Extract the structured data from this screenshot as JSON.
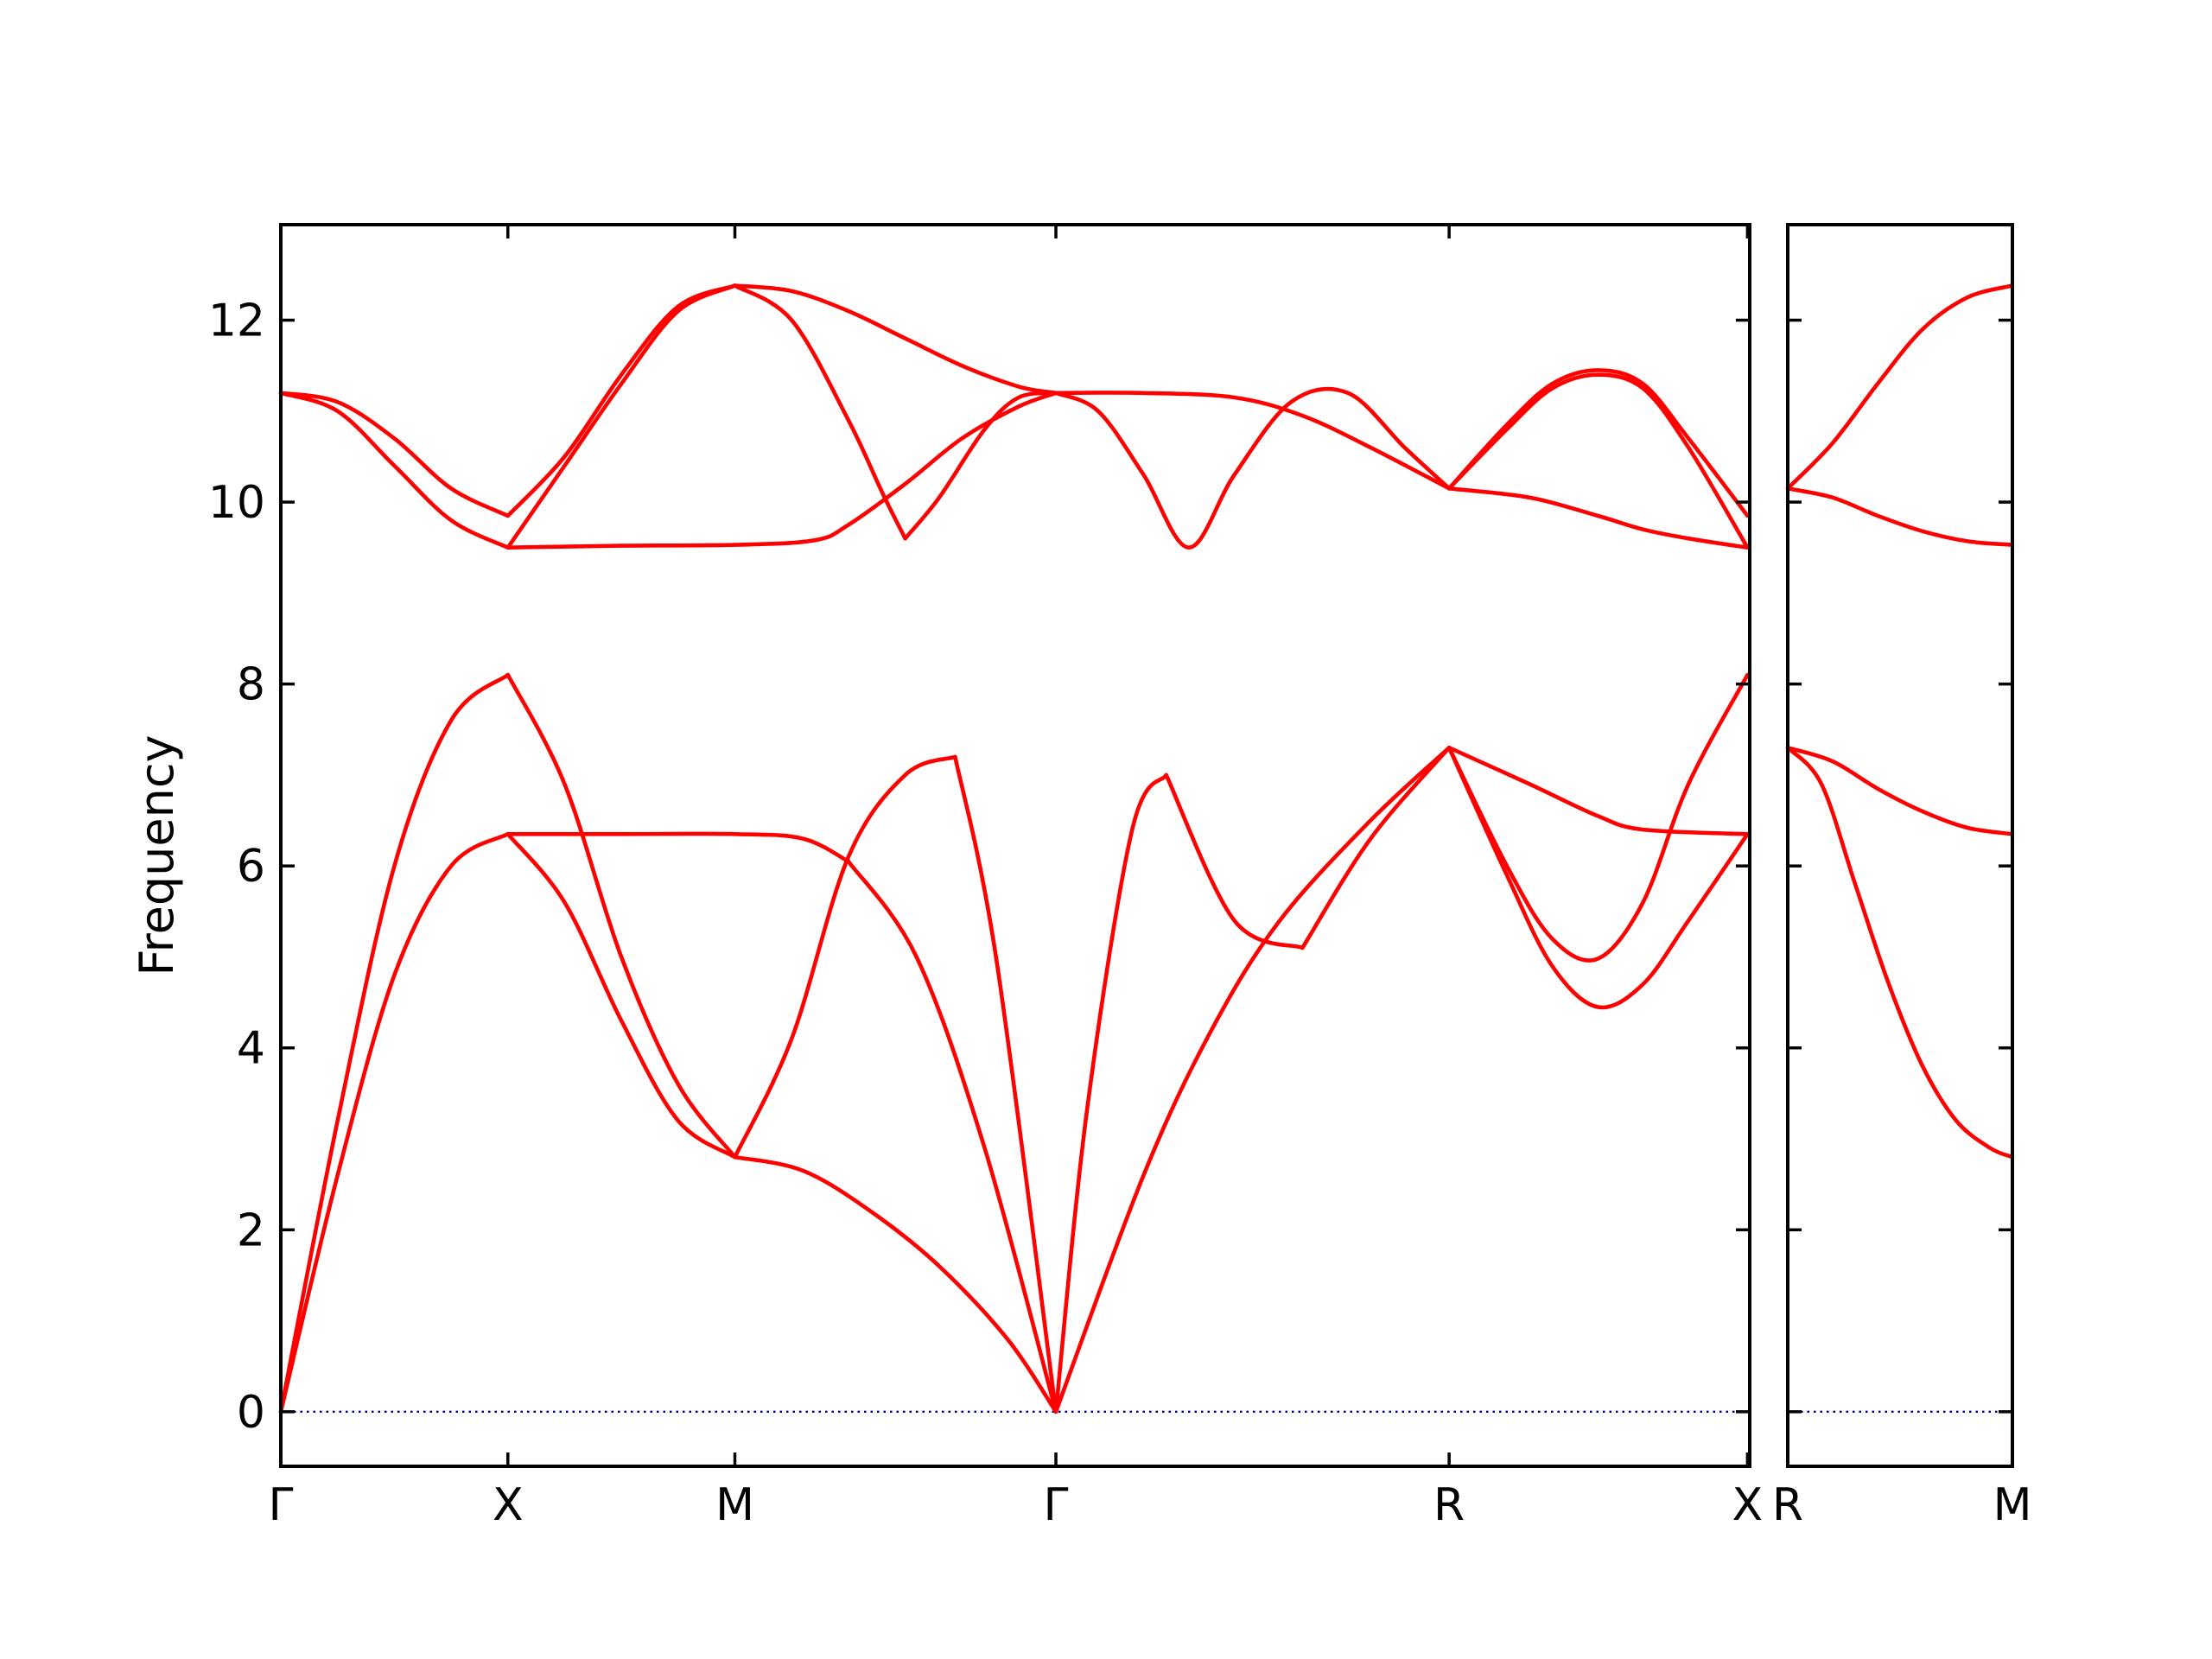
{
  "chart_data": {
    "type": "line",
    "ylabel": "Frequency",
    "ylim": [
      -0.6,
      13.05
    ],
    "yticks": [
      0,
      2,
      4,
      6,
      8,
      10,
      12
    ],
    "colors": {
      "bands": "#ff0000",
      "zero_line": "#00008b"
    },
    "panels": [
      {
        "id": "main",
        "xlim": [
          0,
          6.47
        ],
        "xticks": [
          {
            "pos": 0,
            "label": "Γ"
          },
          {
            "pos": 1,
            "label": "X"
          },
          {
            "pos": 2,
            "label": "M"
          },
          {
            "pos": 3.414,
            "label": "Γ"
          },
          {
            "pos": 5.146,
            "label": "R"
          },
          {
            "pos": 6.46,
            "label": "X"
          }
        ],
        "bands": [
          {
            "x": [
              0,
              0.25,
              0.5,
              0.75,
              1.0
            ],
            "y": [
              0,
              3.2,
              6.0,
              7.6,
              8.1
            ]
          },
          {
            "x": [
              1.0,
              1.25,
              1.5,
              1.75,
              2.0
            ],
            "y": [
              8.1,
              6.9,
              5.0,
              3.6,
              2.8
            ]
          },
          {
            "x": [
              2.0,
              2.25,
              2.5,
              2.75,
              2.97
            ],
            "y": [
              2.8,
              4.1,
              6.1,
              7.0,
              7.2
            ]
          },
          {
            "x": [
              2.97,
              3.15,
              3.414
            ],
            "y": [
              7.2,
              5.0,
              0
            ]
          },
          {
            "x": [
              3.414,
              3.55,
              3.75,
              3.9
            ],
            "y": [
              0,
              3.3,
              6.4,
              7.0
            ]
          },
          {
            "x": [
              3.9,
              4.2,
              4.5
            ],
            "y": [
              7.0,
              5.4,
              5.1
            ]
          },
          {
            "x": [
              4.5,
              4.8,
              5.146
            ],
            "y": [
              5.1,
              6.3,
              7.3
            ]
          },
          {
            "x": [
              5.146,
              5.5,
              5.8,
              6.0,
              6.46
            ],
            "y": [
              7.3,
              6.9,
              6.55,
              6.4,
              6.35
            ]
          },
          {
            "x": [
              0,
              0.25,
              0.5,
              0.75,
              1.0
            ],
            "y": [
              0,
              2.6,
              4.8,
              6.0,
              6.35
            ]
          },
          {
            "x": [
              1.0,
              1.25,
              1.5,
              1.75,
              2.0
            ],
            "y": [
              6.35,
              5.6,
              4.3,
              3.2,
              2.8
            ]
          },
          {
            "x": [
              2.0,
              2.3,
              2.6,
              2.9,
              3.2,
              3.414
            ],
            "y": [
              2.8,
              2.65,
              2.2,
              1.6,
              0.8,
              0
            ]
          },
          {
            "x": [
              1.0,
              1.5,
              2.0,
              2.3,
              2.5
            ],
            "y": [
              6.35,
              6.35,
              6.35,
              6.3,
              6.05
            ]
          },
          {
            "x": [
              2.5,
              2.8,
              3.1,
              3.414
            ],
            "y": [
              6.05,
              5.0,
              2.9,
              0
            ]
          },
          {
            "x": [
              3.414,
              3.8,
              4.1,
              4.4,
              4.8,
              5.146
            ],
            "y": [
              0,
              2.6,
              4.2,
              5.4,
              6.5,
              7.3
            ]
          },
          {
            "x": [
              5.146,
              5.4,
              5.6,
              5.8,
              6.0,
              6.2,
              6.46
            ],
            "y": [
              7.3,
              5.9,
              4.9,
              4.45,
              4.7,
              5.4,
              6.35
            ]
          },
          {
            "x": [
              5.146,
              5.4,
              5.6,
              5.8,
              6.0,
              6.2,
              6.46
            ],
            "y": [
              7.3,
              6.0,
              5.2,
              4.98,
              5.6,
              6.9,
              8.1
            ]
          },
          {
            "x": [
              0,
              0.25,
              0.5,
              0.75,
              1.0
            ],
            "y": [
              11.2,
              11.1,
              10.7,
              10.15,
              9.85
            ]
          },
          {
            "x": [
              1.0,
              1.25,
              1.5,
              1.75,
              2.0
            ],
            "y": [
              9.85,
              10.5,
              11.4,
              12.15,
              12.38
            ]
          },
          {
            "x": [
              2.0,
              2.25,
              2.5,
              2.75,
              3.0,
              3.25,
              3.414
            ],
            "y": [
              12.38,
              12.32,
              12.1,
              11.8,
              11.5,
              11.27,
              11.2
            ]
          },
          {
            "x": [
              0,
              0.25,
              0.5,
              0.75,
              1.0
            ],
            "y": [
              11.2,
              11.0,
              10.4,
              9.8,
              9.5
            ]
          },
          {
            "x": [
              1.0,
              1.25,
              1.5,
              1.75,
              2.0
            ],
            "y": [
              9.5,
              10.4,
              11.3,
              12.1,
              12.38
            ]
          },
          {
            "x": [
              2.0,
              2.25,
              2.5,
              2.65,
              2.75
            ],
            "y": [
              12.38,
              12.0,
              10.9,
              10.1,
              9.6
            ]
          },
          {
            "x": [
              2.75,
              2.9,
              3.1,
              3.25,
              3.414
            ],
            "y": [
              9.6,
              10.05,
              10.8,
              11.15,
              11.2
            ]
          },
          {
            "x": [
              1.0,
              1.5,
              2.0,
              2.35,
              2.5,
              2.75,
              3.0,
              3.25,
              3.414
            ],
            "y": [
              9.5,
              9.52,
              9.53,
              9.58,
              9.75,
              10.2,
              10.7,
              11.05,
              11.2
            ]
          },
          {
            "x": [
              3.414,
              3.6,
              3.8,
              4.0,
              4.2,
              4.45,
              4.7,
              4.95,
              5.146
            ],
            "y": [
              11.2,
              11.0,
              10.3,
              9.5,
              10.3,
              11.1,
              11.2,
              10.6,
              10.15
            ]
          },
          {
            "x": [
              3.414,
              3.8,
              4.2,
              4.5,
              4.8,
              5.146
            ],
            "y": [
              11.2,
              11.2,
              11.15,
              10.95,
              10.6,
              10.15
            ]
          },
          {
            "x": [
              5.146,
              5.4,
              5.6,
              5.8,
              6.0,
              6.2,
              6.46
            ],
            "y": [
              10.15,
              10.85,
              11.3,
              11.45,
              11.3,
              10.7,
              9.85
            ]
          },
          {
            "x": [
              5.146,
              5.4,
              5.6,
              5.8,
              6.0,
              6.2,
              6.46
            ],
            "y": [
              10.15,
              10.8,
              11.25,
              11.4,
              11.25,
              10.6,
              9.5
            ]
          },
          {
            "x": [
              5.146,
              5.5,
              5.8,
              6.0,
              6.2,
              6.46
            ],
            "y": [
              10.15,
              10.05,
              9.85,
              9.7,
              9.6,
              9.5
            ]
          }
        ]
      },
      {
        "id": "right",
        "xlim": [
          0,
          1
        ],
        "xticks": [
          {
            "pos": 0,
            "label": "R"
          },
          {
            "pos": 1,
            "label": "M"
          }
        ],
        "bands": [
          {
            "x": [
              0,
              0.2,
              0.4,
              0.6,
              0.8,
              1.0
            ],
            "y": [
              10.15,
              10.65,
              11.3,
              11.9,
              12.25,
              12.38
            ]
          },
          {
            "x": [
              0,
              0.2,
              0.4,
              0.6,
              0.8,
              1.0
            ],
            "y": [
              10.15,
              10.05,
              9.85,
              9.68,
              9.57,
              9.53
            ]
          },
          {
            "x": [
              0,
              0.2,
              0.4,
              0.6,
              0.8,
              1.0
            ],
            "y": [
              7.3,
              7.15,
              6.85,
              6.6,
              6.42,
              6.35
            ]
          },
          {
            "x": [
              0,
              0.15,
              0.3,
              0.45,
              0.6,
              0.75,
              0.9,
              1.0
            ],
            "y": [
              7.3,
              6.9,
              5.8,
              4.7,
              3.8,
              3.2,
              2.9,
              2.8
            ]
          }
        ]
      }
    ]
  }
}
